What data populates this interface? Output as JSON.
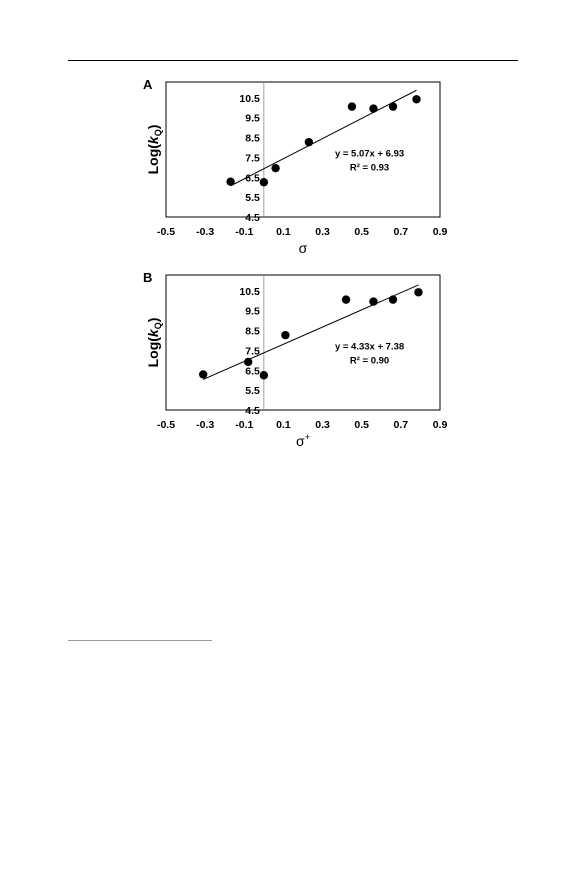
{
  "chart_data": [
    {
      "type": "scatter",
      "panel_label": "A",
      "ylabel": "Log(k",
      "ylabel_sub": "Q",
      "ylabel_close": ")",
      "xlabel": "σ",
      "xlabel_sup": "",
      "xlim": [
        -0.5,
        0.9
      ],
      "ylim": [
        4.5,
        11.3
      ],
      "xticks": [
        "-0.5",
        "-0.3",
        "-0.1",
        "0.1",
        "0.3",
        "0.5",
        "0.7",
        "0.9"
      ],
      "yticks": [
        "4.5",
        "5.5",
        "6.5",
        "7.5",
        "8.5",
        "9.5",
        "10.5"
      ],
      "grid": false,
      "points": [
        {
          "x": -0.17,
          "y": 6.28
        },
        {
          "x": 0.0,
          "y": 6.25
        },
        {
          "x": 0.06,
          "y": 6.96
        },
        {
          "x": 0.23,
          "y": 8.27
        },
        {
          "x": 0.45,
          "y": 10.06
        },
        {
          "x": 0.56,
          "y": 9.96
        },
        {
          "x": 0.66,
          "y": 10.06
        },
        {
          "x": 0.78,
          "y": 10.43
        }
      ],
      "trendline": {
        "slope": 5.07,
        "intercept": 6.93,
        "x_from": -0.17,
        "x_to": 0.78
      },
      "equation": "y = 5.07x + 6.93",
      "r_squared": "R² = 0.93"
    },
    {
      "type": "scatter",
      "panel_label": "B",
      "ylabel": "Log(k",
      "ylabel_sub": "Q",
      "ylabel_close": ")",
      "xlabel": "σ",
      "xlabel_sup": "+",
      "xlim": [
        -0.5,
        0.9
      ],
      "ylim": [
        4.5,
        11.3
      ],
      "xticks": [
        "-0.5",
        "-0.3",
        "-0.1",
        "0.1",
        "0.3",
        "0.5",
        "0.7",
        "0.9"
      ],
      "yticks": [
        "4.5",
        "5.5",
        "6.5",
        "7.5",
        "8.5",
        "9.5",
        "10.5"
      ],
      "grid": false,
      "points": [
        {
          "x": -0.31,
          "y": 6.29
        },
        {
          "x": -0.08,
          "y": 6.92
        },
        {
          "x": 0.0,
          "y": 6.25
        },
        {
          "x": 0.11,
          "y": 8.27
        },
        {
          "x": 0.42,
          "y": 10.06
        },
        {
          "x": 0.56,
          "y": 9.96
        },
        {
          "x": 0.66,
          "y": 10.06
        },
        {
          "x": 0.79,
          "y": 10.43
        }
      ],
      "trendline": {
        "slope": 4.33,
        "intercept": 7.38,
        "x_from": -0.31,
        "x_to": 0.79
      },
      "equation": "y = 4.33x + 7.38",
      "r_squared": "R² = 0.90"
    }
  ]
}
